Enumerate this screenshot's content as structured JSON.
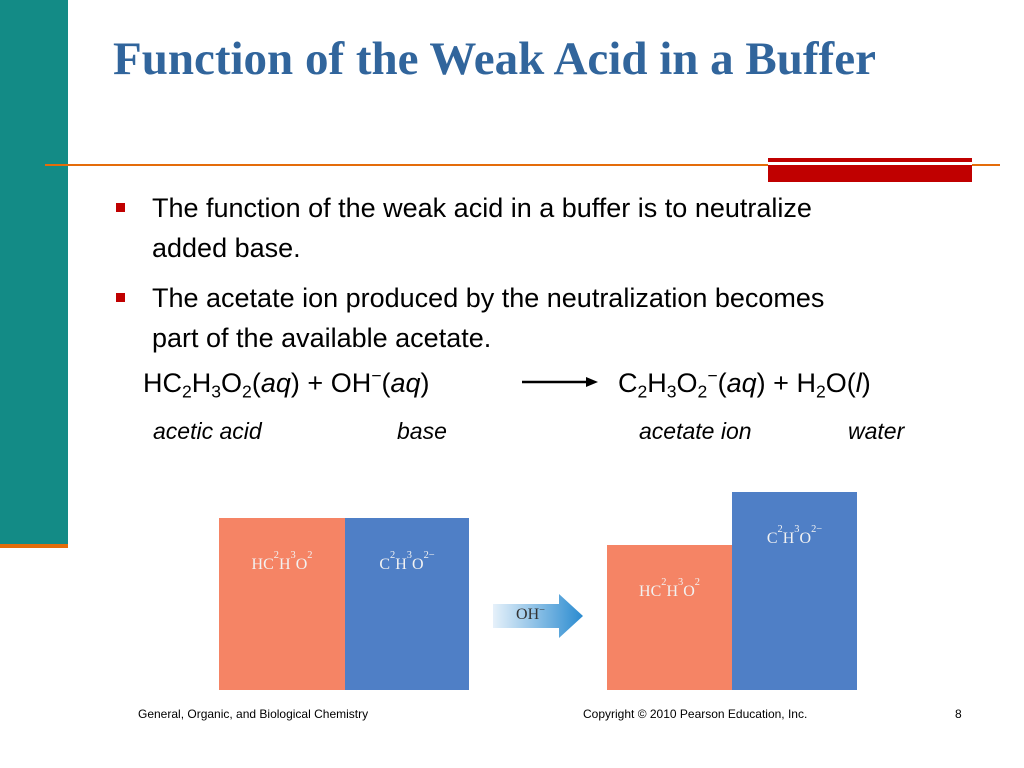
{
  "title": "Function of the Weak Acid in a Buffer",
  "bullets": [
    "The function of the weak acid in a buffer is to neutralize added base.",
    "The acetate ion produced by the neutralization becomes part of the available acetate."
  ],
  "equation": {
    "reactants": "HC2H3O2(aq) + OH−(aq)",
    "products": "C2H3O2−(aq) + H2O(l)",
    "labels": [
      "acetic acid",
      "base",
      "acetate ion",
      "water"
    ]
  },
  "figure": {
    "before": [
      "HC2H3O2",
      "C2H3O2−"
    ],
    "arrow": "OH−",
    "after": [
      "HC2H3O2",
      "C2H3O2−"
    ]
  },
  "footer": {
    "left": "General, Organic, and Biological Chemistry",
    "center": "Copyright © 2010 Pearson Education, Inc.",
    "page": "8"
  }
}
